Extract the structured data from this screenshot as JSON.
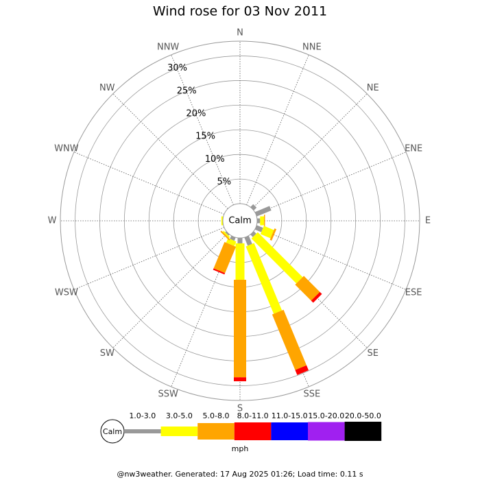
{
  "chart_data": {
    "type": "windrose",
    "title": "Wind rose for 03 Nov 2011",
    "directions": [
      "N",
      "NNE",
      "NE",
      "ENE",
      "E",
      "ESE",
      "SE",
      "SSE",
      "S",
      "SSW",
      "SW",
      "WSW",
      "W",
      "WNW",
      "NW",
      "NNW"
    ],
    "calm_label": "Calm",
    "rlim": [
      0,
      33
    ],
    "rticks": [
      {
        "value": 5,
        "label": "5%"
      },
      {
        "value": 10,
        "label": "10%"
      },
      {
        "value": 15,
        "label": "15%"
      },
      {
        "value": 20,
        "label": "20%"
      },
      {
        "value": 25,
        "label": "25%"
      },
      {
        "value": 30,
        "label": "30%"
      }
    ],
    "series": [
      {
        "name": "1.0-3.0",
        "color": "#999999",
        "values": [
          0,
          0,
          0.8,
          3.2,
          0.6,
          1.4,
          0.7,
          1.8,
          1.1,
          0.7,
          0.3,
          0,
          0,
          0,
          0,
          0
        ]
      },
      {
        "name": "3.0-5.0",
        "color": "#ffff00",
        "values": [
          0,
          0,
          0,
          0,
          0.8,
          2.2,
          12.9,
          14.8,
          7.4,
          1.0,
          0.3,
          0,
          0.3,
          0,
          0,
          0
        ]
      },
      {
        "name": "5.0-8.0",
        "color": "#ffa500",
        "values": [
          0,
          0,
          0,
          0,
          0.2,
          0.4,
          4.6,
          12.2,
          19.8,
          5.8,
          0.3,
          0,
          0,
          0,
          0,
          0
        ]
      },
      {
        "name": "8.0-11.0",
        "color": "#ff0000",
        "values": [
          0,
          0,
          0,
          0,
          0,
          0,
          0.6,
          1.1,
          0.8,
          0.3,
          0,
          0,
          0,
          0,
          0,
          0
        ]
      },
      {
        "name": "11.0-15.0",
        "color": "#0000ff",
        "values": [
          0,
          0,
          0,
          0,
          0,
          0,
          0,
          0,
          0,
          0,
          0,
          0,
          0,
          0,
          0,
          0
        ]
      },
      {
        "name": "15.0-20.0",
        "color": "#a020f0",
        "values": [
          0,
          0,
          0,
          0,
          0,
          0,
          0,
          0,
          0,
          0,
          0,
          0,
          0,
          0,
          0,
          0
        ]
      },
      {
        "name": "20.0-50.0",
        "color": "#000000",
        "values": [
          0,
          0,
          0,
          0,
          0,
          0,
          0,
          0,
          0,
          0,
          0,
          0,
          0,
          0,
          0,
          0
        ]
      }
    ],
    "unit": "mph",
    "footer": "@nw3weather. Generated: 17 Aug 2025 01:26; Load time: 0.11 s"
  }
}
